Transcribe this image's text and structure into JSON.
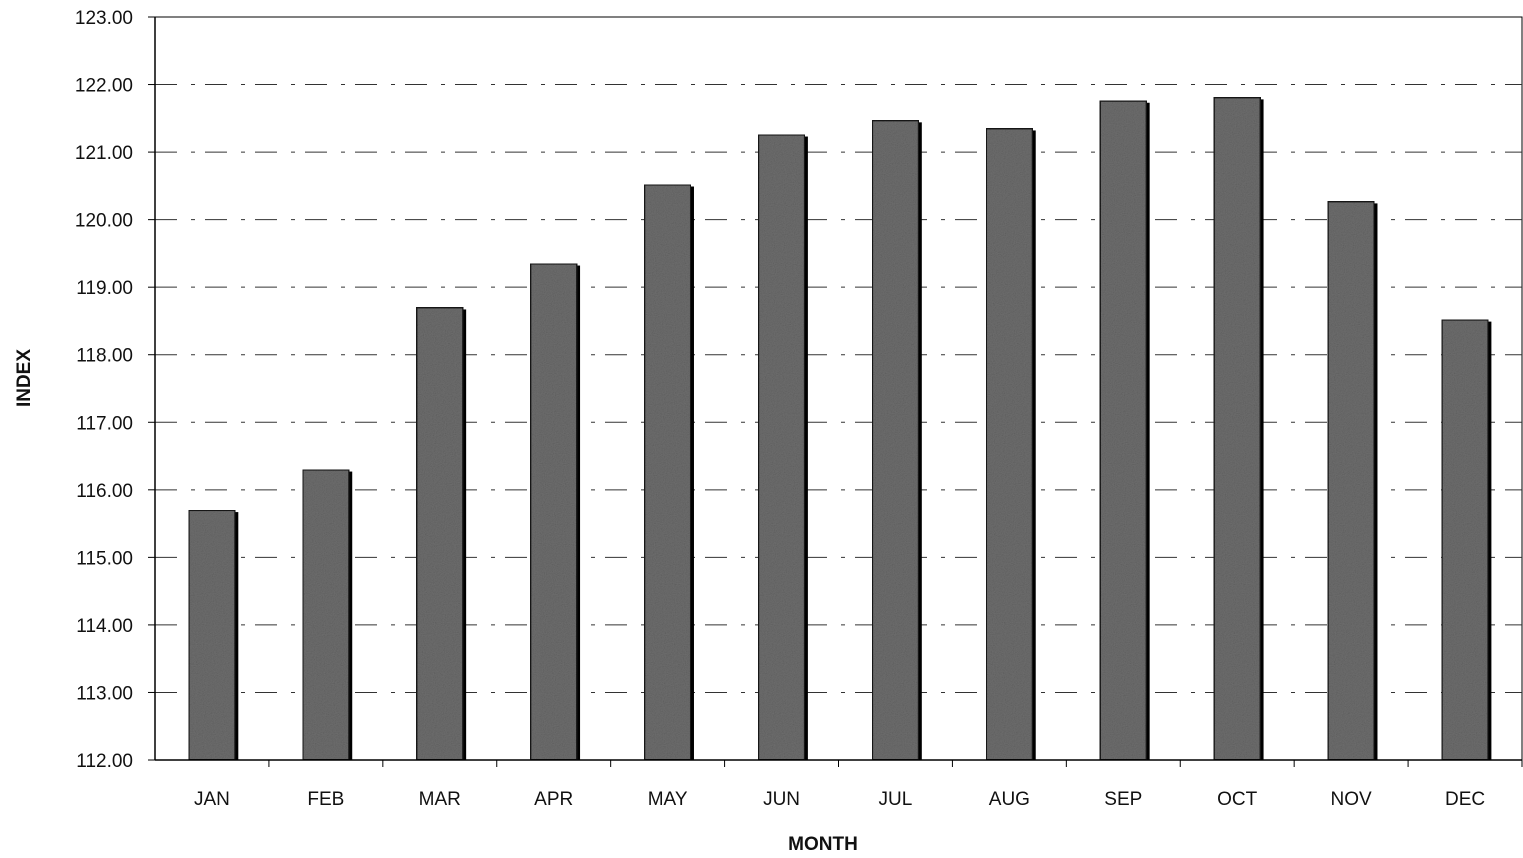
{
  "chart_data": {
    "type": "bar",
    "title": "",
    "xlabel": "MONTH",
    "ylabel": "INDEX",
    "categories": [
      "JAN",
      "FEB",
      "MAR",
      "APR",
      "MAY",
      "JUN",
      "JUL",
      "AUG",
      "SEP",
      "OCT",
      "NOV",
      "DEC"
    ],
    "values": [
      115.7,
      116.3,
      118.7,
      119.35,
      120.52,
      121.26,
      121.47,
      121.35,
      121.76,
      121.81,
      120.27,
      118.52
    ],
    "ylim": [
      112,
      123
    ],
    "yticks": [
      "112.00",
      "113.00",
      "114.00",
      "115.00",
      "116.00",
      "117.00",
      "118.00",
      "119.00",
      "120.00",
      "121.00",
      "122.00",
      "123.00"
    ],
    "grid": true,
    "legend": "none",
    "colors": {
      "bar_fill": "#6e6e6e",
      "bar_edge": "#1a1a1a",
      "grid": "#333333",
      "axis": "#000000"
    }
  }
}
